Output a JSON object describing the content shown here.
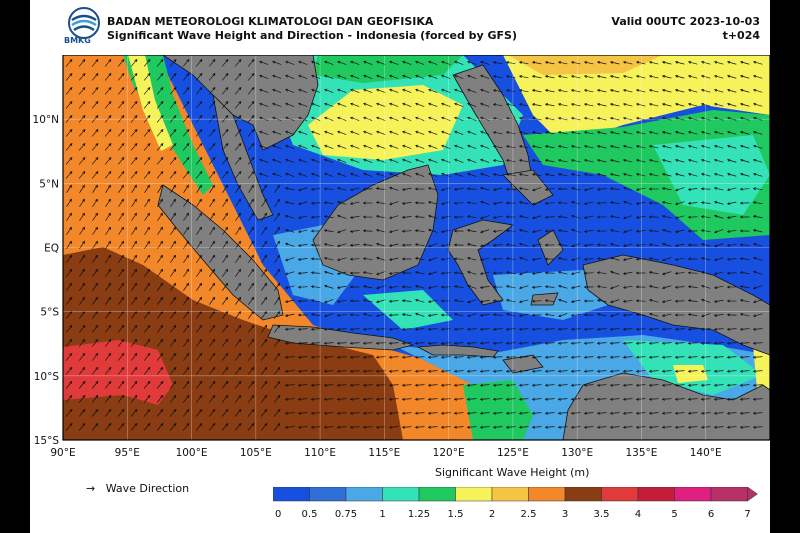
{
  "header": {
    "agency": "BADAN METEOROLOGI KLIMATOLOGI DAN GEOFISIKA",
    "product": "Significant Wave Height and Direction - Indonesia (forced by GFS)",
    "valid": "Valid 00UTC 2023-10-03",
    "lead": "t+024",
    "logo_text": "BMKG"
  },
  "map": {
    "lat_labels": [
      "10°N",
      "5°N",
      "EQ",
      "5°S",
      "10°S",
      "15°S"
    ],
    "lon_labels": [
      "90°E",
      "95°E",
      "100°E",
      "105°E",
      "110°E",
      "115°E",
      "120°E",
      "125°E",
      "130°E",
      "135°E",
      "140°E"
    ],
    "lat_range": [
      -15,
      15
    ],
    "lon_range": [
      90,
      145
    ],
    "land_color": "#808080",
    "grid": true
  },
  "legend": {
    "arrow_glyph": "→",
    "arrow_label": "Wave Direction"
  },
  "colorbar": {
    "title": "Significant Wave Height (m)",
    "ticks": [
      "0",
      "0.5",
      "0.75",
      "1",
      "1.25",
      "1.5",
      "2",
      "2.5",
      "3",
      "3.5",
      "4",
      "5",
      "6",
      "7"
    ],
    "colors": [
      "#1750e0",
      "#2f6fd6",
      "#4aa8e6",
      "#34e2b8",
      "#20c860",
      "#f6f25a",
      "#f6c444",
      "#f3882a",
      "#8a3c12",
      "#e03a3a",
      "#c21e3a",
      "#e02080",
      "#b83068"
    ]
  }
}
